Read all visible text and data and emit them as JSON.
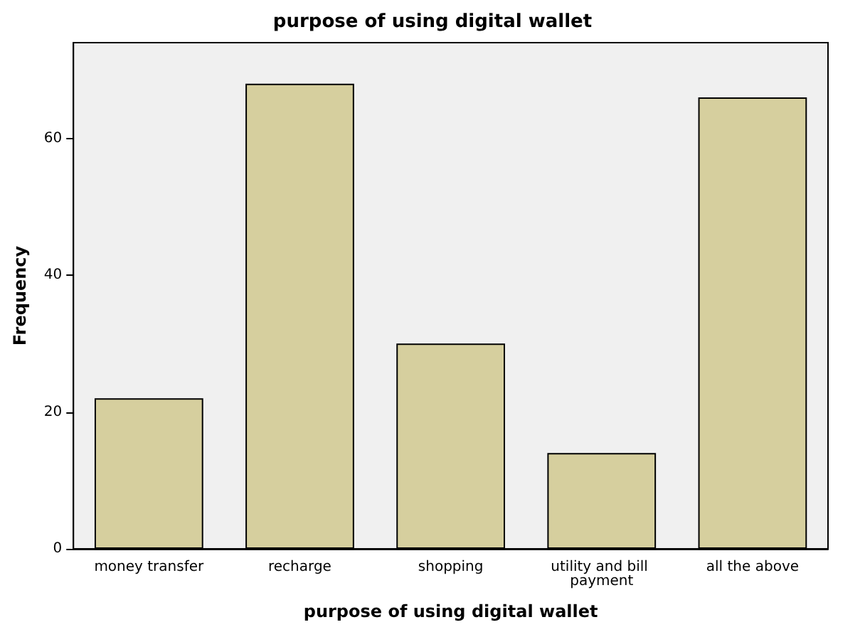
{
  "chart_data": {
    "type": "bar",
    "title": "purpose of using digital wallet",
    "xlabel": "purpose of using digital wallet",
    "ylabel": "Frequency",
    "categories": [
      "money transfer",
      "recharge",
      "shopping",
      "utility and bill payment",
      "all the above"
    ],
    "values": [
      22,
      68,
      30,
      14,
      66
    ],
    "color": "#d6cf9e",
    "ylim": [
      0,
      74
    ],
    "yticks": [
      0,
      20,
      40,
      60
    ],
    "grid": false
  }
}
